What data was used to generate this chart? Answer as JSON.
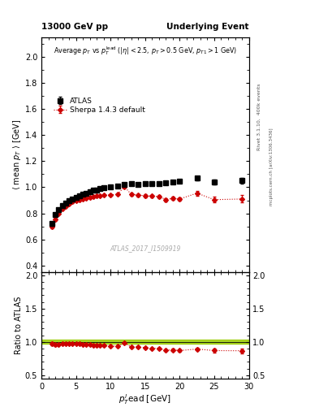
{
  "title_left": "13000 GeV pp",
  "title_right": "Underlying Event",
  "watermark": "ATLAS_2017_I1509919",
  "rivet_label": "Rivet 3.1.10,  400k events",
  "arxiv_label": "mcplots.cern.ch [arXiv:1306.3436]",
  "ylim_main": [
    0.35,
    2.15
  ],
  "ylim_ratio": [
    0.45,
    2.05
  ],
  "xlim": [
    0,
    30
  ],
  "atlas_x": [
    1.5,
    2.0,
    2.5,
    3.0,
    3.5,
    4.0,
    4.5,
    5.0,
    5.5,
    6.0,
    6.5,
    7.0,
    7.5,
    8.0,
    8.5,
    9.0,
    10.0,
    11.0,
    12.0,
    13.0,
    14.0,
    15.0,
    16.0,
    17.0,
    18.0,
    19.0,
    20.0,
    22.5,
    25.0,
    29.0
  ],
  "atlas_y": [
    0.72,
    0.79,
    0.83,
    0.86,
    0.88,
    0.895,
    0.91,
    0.925,
    0.935,
    0.945,
    0.955,
    0.965,
    0.975,
    0.98,
    0.99,
    0.995,
    1.005,
    1.01,
    1.02,
    1.025,
    1.02,
    1.025,
    1.03,
    1.03,
    1.035,
    1.04,
    1.045,
    1.07,
    1.04,
    1.05
  ],
  "atlas_yerr": [
    0.015,
    0.012,
    0.01,
    0.009,
    0.008,
    0.008,
    0.007,
    0.007,
    0.007,
    0.006,
    0.006,
    0.006,
    0.006,
    0.006,
    0.006,
    0.006,
    0.006,
    0.006,
    0.007,
    0.007,
    0.008,
    0.008,
    0.009,
    0.009,
    0.01,
    0.012,
    0.012,
    0.015,
    0.018,
    0.02
  ],
  "sherpa_x": [
    1.5,
    2.0,
    2.5,
    3.0,
    3.5,
    4.0,
    4.5,
    5.0,
    5.5,
    6.0,
    6.5,
    7.0,
    7.5,
    8.0,
    8.5,
    9.0,
    10.0,
    11.0,
    12.0,
    13.0,
    14.0,
    15.0,
    16.0,
    17.0,
    18.0,
    19.0,
    20.0,
    22.5,
    25.0,
    29.0
  ],
  "sherpa_y": [
    0.7,
    0.755,
    0.8,
    0.835,
    0.855,
    0.875,
    0.888,
    0.898,
    0.906,
    0.912,
    0.918,
    0.923,
    0.928,
    0.932,
    0.935,
    0.938,
    0.942,
    0.945,
    1.005,
    0.945,
    0.94,
    0.935,
    0.932,
    0.93,
    0.905,
    0.915,
    0.91,
    0.955,
    0.905,
    0.91
  ],
  "sherpa_yerr": [
    0.015,
    0.012,
    0.01,
    0.009,
    0.008,
    0.007,
    0.007,
    0.006,
    0.006,
    0.006,
    0.005,
    0.005,
    0.005,
    0.005,
    0.005,
    0.005,
    0.005,
    0.006,
    0.007,
    0.008,
    0.009,
    0.01,
    0.011,
    0.012,
    0.013,
    0.014,
    0.015,
    0.018,
    0.022,
    0.028
  ],
  "ratio_sherpa_y": [
    0.972,
    0.956,
    0.964,
    0.971,
    0.972,
    0.977,
    0.977,
    0.971,
    0.97,
    0.965,
    0.961,
    0.957,
    0.952,
    0.951,
    0.945,
    0.943,
    0.937,
    0.936,
    0.985,
    0.922,
    0.922,
    0.912,
    0.904,
    0.903,
    0.875,
    0.88,
    0.87,
    0.893,
    0.87,
    0.867
  ],
  "ratio_sherpa_yerr": [
    0.02,
    0.016,
    0.014,
    0.013,
    0.012,
    0.011,
    0.01,
    0.01,
    0.009,
    0.009,
    0.008,
    0.008,
    0.008,
    0.008,
    0.008,
    0.008,
    0.008,
    0.008,
    0.009,
    0.01,
    0.012,
    0.013,
    0.014,
    0.015,
    0.016,
    0.018,
    0.019,
    0.023,
    0.028,
    0.035
  ],
  "atlas_color": "#000000",
  "sherpa_color": "#cc0000",
  "ratio_band_color": "#99cc00",
  "yticks_main": [
    0.4,
    0.6,
    0.8,
    1.0,
    1.2,
    1.4,
    1.6,
    1.8,
    2.0
  ],
  "yticks_ratio": [
    0.5,
    1.0,
    1.5,
    2.0
  ],
  "xticks": [
    0,
    5,
    10,
    15,
    20,
    25,
    30
  ]
}
